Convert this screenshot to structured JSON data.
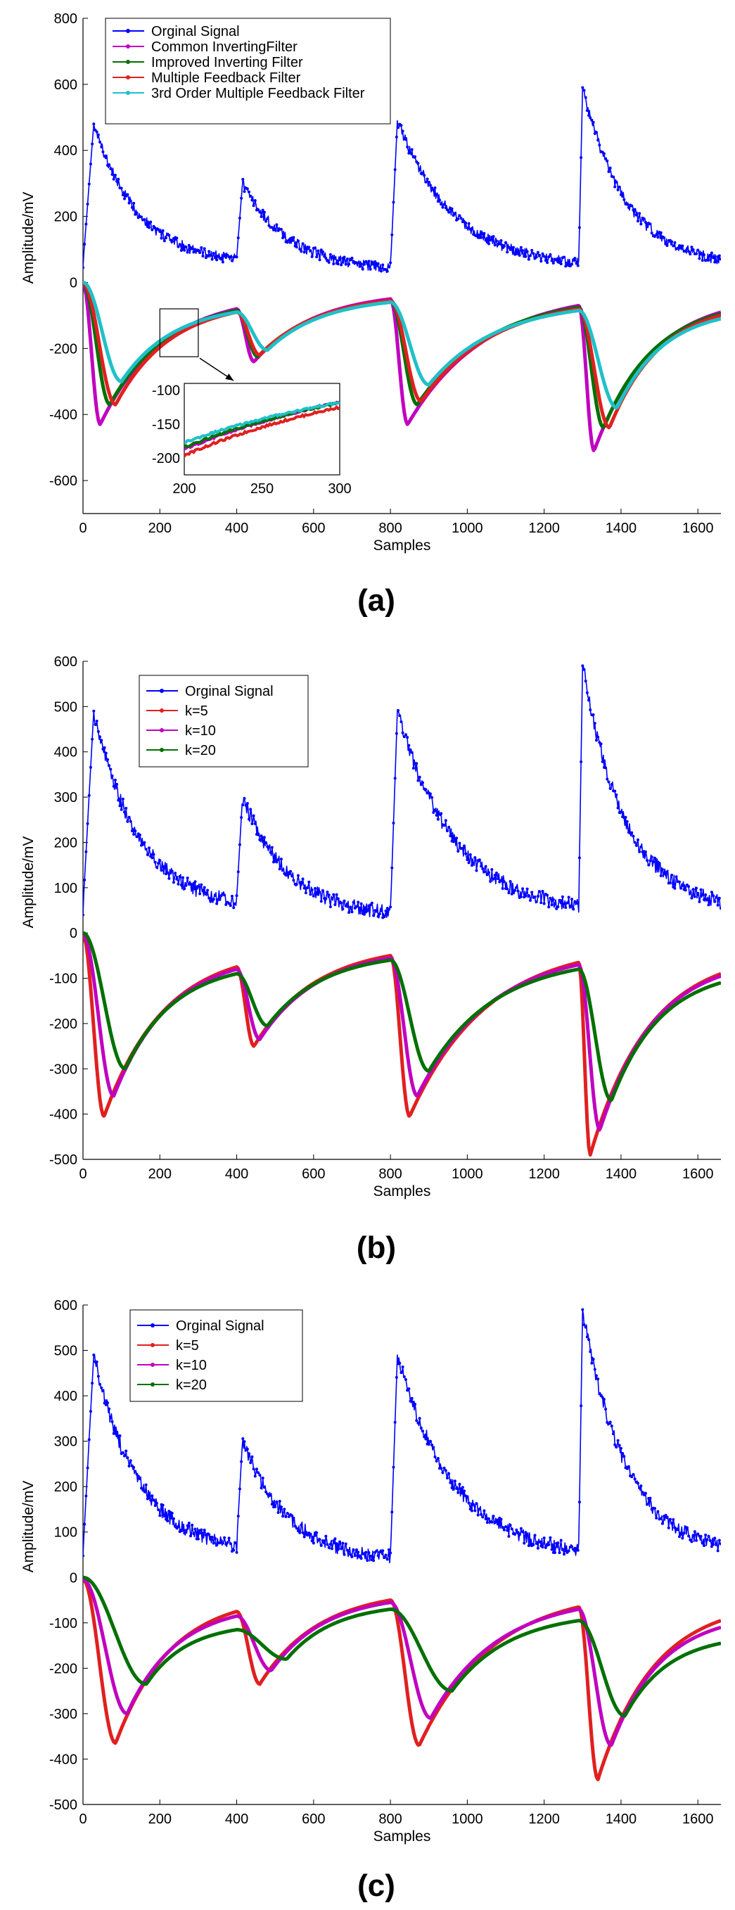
{
  "chart_data": [
    {
      "type": "line",
      "panel_label": "(a)",
      "xlabel": "Samples",
      "ylabel": "Amplitude/mV",
      "xlim": [
        0,
        1660
      ],
      "ylim": [
        -700,
        800
      ],
      "x_ticks": [
        0,
        200,
        400,
        600,
        800,
        1000,
        1200,
        1400,
        1600
      ],
      "y_ticks": [
        -600,
        -400,
        -200,
        0,
        200,
        400,
        600,
        800
      ],
      "grid": false,
      "legend_position": "top-left",
      "series": [
        {
          "name": "Orginal Signal",
          "color": "#0000ff",
          "marker": "star",
          "cycles": [
            {
              "start": 0,
              "base": 55,
              "rise_end": 28,
              "peak": 480,
              "end": 400,
              "end_value": 70
            },
            {
              "start": 400,
              "base": 75,
              "rise_end": 415,
              "peak": 300,
              "end": 800,
              "end_value": 45
            },
            {
              "start": 800,
              "base": 45,
              "rise_end": 818,
              "peak": 490,
              "end": 1290,
              "end_value": 60
            },
            {
              "start": 1290,
              "base": 60,
              "rise_end": 1300,
              "peak": 590,
              "end": 1660,
              "end_value": 70
            }
          ]
        },
        {
          "name": "Common InvertingFilter",
          "color": "#c000c0",
          "marker": "triangle-down",
          "cycles": [
            {
              "start": 0,
              "from": -5,
              "min_x": 45,
              "min": -430,
              "end": 400,
              "end_value": -80
            },
            {
              "start": 400,
              "from": -80,
              "min_x": 445,
              "min": -240,
              "end": 800,
              "end_value": -50
            },
            {
              "start": 800,
              "from": -50,
              "min_x": 845,
              "min": -430,
              "end": 1290,
              "end_value": -70
            },
            {
              "start": 1290,
              "from": -70,
              "min_x": 1330,
              "min": -510,
              "end": 1660,
              "end_value": -90
            }
          ]
        },
        {
          "name": "Improved Inverting Filter",
          "color": "#007000",
          "marker": "dot",
          "cycles": [
            {
              "start": 0,
              "from": -5,
              "min_x": 70,
              "min": -370,
              "end": 400,
              "end_value": -85
            },
            {
              "start": 400,
              "from": -85,
              "min_x": 455,
              "min": -225,
              "end": 800,
              "end_value": -55
            },
            {
              "start": 800,
              "from": -55,
              "min_x": 870,
              "min": -370,
              "end": 1290,
              "end_value": -75
            },
            {
              "start": 1290,
              "from": -75,
              "min_x": 1355,
              "min": -440,
              "end": 1660,
              "end_value": -95
            }
          ]
        },
        {
          "name": "Multiple Feedback Filter",
          "color": "#e02020",
          "marker": "dot",
          "cycles": [
            {
              "start": 0,
              "from": -5,
              "min_x": 85,
              "min": -370,
              "end": 400,
              "end_value": -90
            },
            {
              "start": 400,
              "from": -90,
              "min_x": 460,
              "min": -220,
              "end": 800,
              "end_value": -55
            },
            {
              "start": 800,
              "from": -55,
              "min_x": 880,
              "min": -360,
              "end": 1290,
              "end_value": -80
            },
            {
              "start": 1290,
              "from": -80,
              "min_x": 1370,
              "min": -440,
              "end": 1660,
              "end_value": -100
            }
          ]
        },
        {
          "name": "3rd Order Multiple Feedback Filter",
          "color": "#20c0c8",
          "marker": "diamond",
          "cycles": [
            {
              "start": 0,
              "from": 0,
              "min_x": 100,
              "min": -300,
              "end": 400,
              "end_value": -90
            },
            {
              "start": 400,
              "from": -90,
              "min_x": 480,
              "min": -205,
              "end": 800,
              "end_value": -60
            },
            {
              "start": 800,
              "from": -60,
              "min_x": 900,
              "min": -310,
              "end": 1290,
              "end_value": -85
            },
            {
              "start": 1290,
              "from": -85,
              "min_x": 1390,
              "min": -380,
              "end": 1660,
              "end_value": -110
            }
          ]
        }
      ],
      "inset": {
        "xlim": [
          200,
          300
        ],
        "ylim": [
          -225,
          -90
        ],
        "x_ticks": [
          200,
          250,
          300
        ],
        "y_ticks": [
          -100,
          -150,
          -200
        ]
      }
    },
    {
      "type": "line",
      "panel_label": "(b)",
      "xlabel": "Samples",
      "ylabel": "Amplitude/mV",
      "xlim": [
        0,
        1660
      ],
      "ylim": [
        -500,
        600
      ],
      "x_ticks": [
        0,
        200,
        400,
        600,
        800,
        1000,
        1200,
        1400,
        1600
      ],
      "y_ticks": [
        -500,
        -400,
        -300,
        -200,
        -100,
        0,
        100,
        200,
        300,
        400,
        500,
        600
      ],
      "grid": false,
      "legend_position": "top-left",
      "series": [
        {
          "name": "Orginal Signal",
          "color": "#0000ff",
          "marker": "star",
          "cycles": [
            {
              "start": 0,
              "base": 55,
              "rise_end": 28,
              "peak": 490,
              "end": 400,
              "end_value": 70
            },
            {
              "start": 400,
              "base": 75,
              "rise_end": 415,
              "peak": 300,
              "end": 800,
              "end_value": 45
            },
            {
              "start": 800,
              "base": 45,
              "rise_end": 818,
              "peak": 490,
              "end": 1290,
              "end_value": 60
            },
            {
              "start": 1290,
              "base": 60,
              "rise_end": 1300,
              "peak": 590,
              "end": 1660,
              "end_value": 70
            }
          ]
        },
        {
          "name": "k=5",
          "color": "#e02020",
          "marker": "dot",
          "cycles": [
            {
              "start": 0,
              "from": -5,
              "min_x": 55,
              "min": -405,
              "end": 400,
              "end_value": -75
            },
            {
              "start": 400,
              "from": -75,
              "min_x": 445,
              "min": -250,
              "end": 800,
              "end_value": -50
            },
            {
              "start": 800,
              "from": -50,
              "min_x": 850,
              "min": -405,
              "end": 1290,
              "end_value": -65
            },
            {
              "start": 1290,
              "from": -65,
              "min_x": 1320,
              "min": -490,
              "end": 1660,
              "end_value": -90
            }
          ]
        },
        {
          "name": "k=10",
          "color": "#c000c0",
          "marker": "dot",
          "cycles": [
            {
              "start": 0,
              "from": -5,
              "min_x": 80,
              "min": -360,
              "end": 400,
              "end_value": -80
            },
            {
              "start": 400,
              "from": -80,
              "min_x": 460,
              "min": -235,
              "end": 800,
              "end_value": -55
            },
            {
              "start": 800,
              "from": -55,
              "min_x": 870,
              "min": -360,
              "end": 1290,
              "end_value": -70
            },
            {
              "start": 1290,
              "from": -70,
              "min_x": 1345,
              "min": -435,
              "end": 1660,
              "end_value": -95
            }
          ]
        },
        {
          "name": "k=20",
          "color": "#007000",
          "marker": "dot",
          "cycles": [
            {
              "start": 0,
              "from": 0,
              "min_x": 110,
              "min": -300,
              "end": 400,
              "end_value": -90
            },
            {
              "start": 400,
              "from": -90,
              "min_x": 480,
              "min": -205,
              "end": 800,
              "end_value": -60
            },
            {
              "start": 800,
              "from": -60,
              "min_x": 900,
              "min": -305,
              "end": 1290,
              "end_value": -80
            },
            {
              "start": 1290,
              "from": -80,
              "min_x": 1375,
              "min": -370,
              "end": 1660,
              "end_value": -110
            }
          ]
        }
      ]
    },
    {
      "type": "line",
      "panel_label": "(c)",
      "xlabel": "Samples",
      "ylabel": "Amplitude/mV",
      "xlim": [
        0,
        1660
      ],
      "ylim": [
        -500,
        600
      ],
      "x_ticks": [
        0,
        200,
        400,
        600,
        800,
        1000,
        1200,
        1400,
        1600
      ],
      "y_ticks": [
        -500,
        -400,
        -300,
        -200,
        -100,
        0,
        100,
        200,
        300,
        400,
        500,
        600
      ],
      "grid": false,
      "legend_position": "top-left",
      "series": [
        {
          "name": "Orginal Signal",
          "color": "#0000ff",
          "marker": "star",
          "cycles": [
            {
              "start": 0,
              "base": 55,
              "rise_end": 28,
              "peak": 490,
              "end": 400,
              "end_value": 70
            },
            {
              "start": 400,
              "base": 75,
              "rise_end": 415,
              "peak": 300,
              "end": 800,
              "end_value": 45
            },
            {
              "start": 800,
              "base": 45,
              "rise_end": 818,
              "peak": 490,
              "end": 1290,
              "end_value": 60
            },
            {
              "start": 1290,
              "base": 60,
              "rise_end": 1300,
              "peak": 590,
              "end": 1660,
              "end_value": 70
            }
          ]
        },
        {
          "name": "k=5",
          "color": "#e02020",
          "marker": "dot",
          "cycles": [
            {
              "start": 0,
              "from": -5,
              "min_x": 85,
              "min": -365,
              "end": 400,
              "end_value": -75
            },
            {
              "start": 400,
              "from": -75,
              "min_x": 460,
              "min": -235,
              "end": 800,
              "end_value": -50
            },
            {
              "start": 800,
              "from": -50,
              "min_x": 875,
              "min": -370,
              "end": 1290,
              "end_value": -65
            },
            {
              "start": 1290,
              "from": -65,
              "min_x": 1340,
              "min": -445,
              "end": 1660,
              "end_value": -95
            }
          ]
        },
        {
          "name": "k=10",
          "color": "#c000c0",
          "marker": "dot",
          "cycles": [
            {
              "start": 0,
              "from": -5,
              "min_x": 115,
              "min": -300,
              "end": 400,
              "end_value": -85
            },
            {
              "start": 400,
              "from": -85,
              "min_x": 490,
              "min": -205,
              "end": 800,
              "end_value": -55
            },
            {
              "start": 800,
              "from": -55,
              "min_x": 905,
              "min": -310,
              "end": 1290,
              "end_value": -70
            },
            {
              "start": 1290,
              "from": -70,
              "min_x": 1375,
              "min": -370,
              "end": 1660,
              "end_value": -110
            }
          ]
        },
        {
          "name": "k=20",
          "color": "#007000",
          "marker": "dot",
          "cycles": [
            {
              "start": 0,
              "from": 0,
              "min_x": 165,
              "min": -235,
              "end": 400,
              "end_value": -115
            },
            {
              "start": 400,
              "from": -115,
              "min_x": 530,
              "min": -180,
              "end": 800,
              "end_value": -70
            },
            {
              "start": 800,
              "from": -70,
              "min_x": 960,
              "min": -250,
              "end": 1290,
              "end_value": -95
            },
            {
              "start": 1290,
              "from": -95,
              "min_x": 1410,
              "min": -305,
              "end": 1660,
              "end_value": -145
            }
          ]
        }
      ]
    }
  ]
}
